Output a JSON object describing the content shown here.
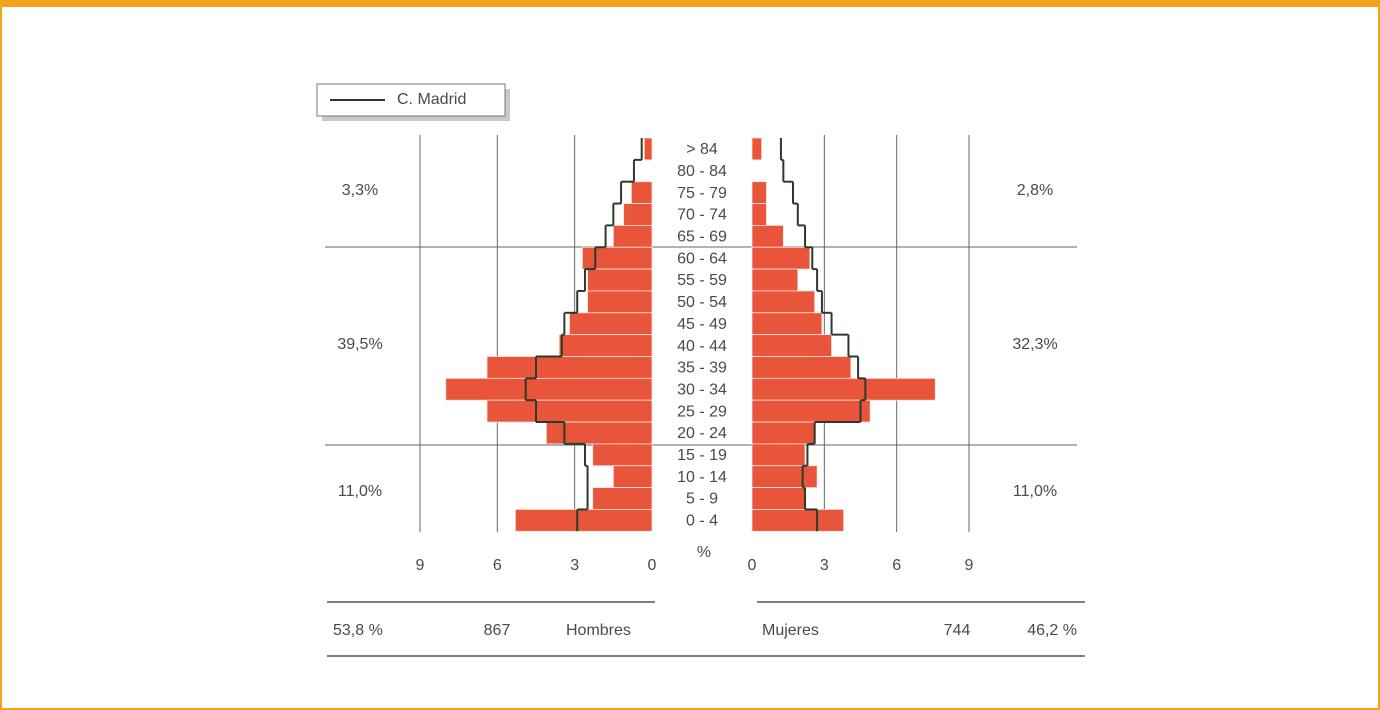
{
  "chart_data": {
    "type": "pyramid",
    "categories": [
      "> 84",
      "80 - 84",
      "75 - 79",
      "70 - 74",
      "65 - 69",
      "60 - 64",
      "55 - 59",
      "50 - 54",
      "45 - 49",
      "40 - 44",
      "35 - 39",
      "30 - 34",
      "25 - 29",
      "20 - 24",
      "15 - 19",
      "10 - 14",
      "5 - 9",
      "0 - 4"
    ],
    "legend": "C. Madrid",
    "reference_color": "#2b3b2a",
    "bar_color": "#e9553a",
    "xlabel": "%",
    "xlim": [
      0,
      9
    ],
    "xticks": [
      0,
      3,
      6,
      9
    ],
    "sides": [
      {
        "label": "Hombres",
        "share": "53,8 %",
        "total": 867,
        "group_labels": [
          "3,3%",
          "39,5%",
          "11,0%"
        ],
        "values": [
          0.3,
          0,
          0.8,
          1.1,
          1.5,
          2.7,
          2.5,
          2.5,
          3.2,
          3.6,
          6.4,
          8.0,
          6.4,
          4.1,
          2.3,
          1.5,
          2.3,
          5.3
        ],
        "reference": [
          0.4,
          0.7,
          1.2,
          1.5,
          1.8,
          2.2,
          2.6,
          2.9,
          3.4,
          3.5,
          4.5,
          4.9,
          4.5,
          3.4,
          2.6,
          2.5,
          2.5,
          2.9
        ]
      },
      {
        "label": "Mujeres",
        "share": "46,2 %",
        "total": 744,
        "group_labels": [
          "2,8%",
          "32,3%",
          "11,0%"
        ],
        "values": [
          0.4,
          0,
          0.6,
          0.6,
          1.3,
          2.4,
          1.9,
          2.6,
          2.9,
          3.3,
          4.1,
          7.6,
          4.9,
          2.6,
          2.2,
          2.7,
          2.2,
          3.8
        ],
        "reference": [
          1.2,
          1.3,
          1.7,
          1.9,
          2.2,
          2.5,
          2.7,
          2.9,
          3.3,
          4.0,
          4.4,
          4.7,
          4.5,
          2.6,
          2.3,
          2.1,
          2.2,
          2.7
        ]
      }
    ]
  }
}
